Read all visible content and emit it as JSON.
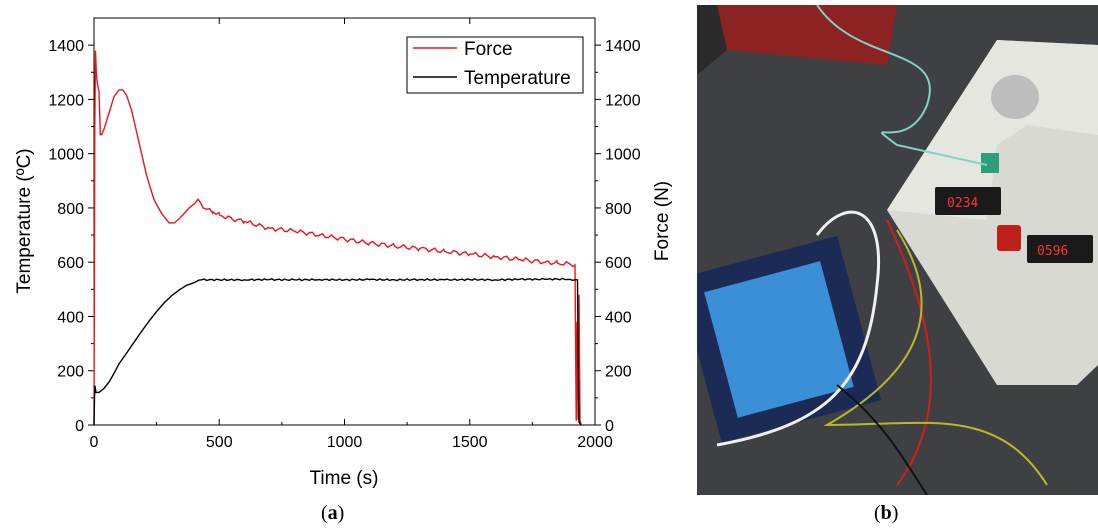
{
  "chart_data": {
    "type": "line",
    "xlabel": "Time (s)",
    "ylabel_left": "Temperature (ºC)",
    "ylabel_right": "Force (N)",
    "xlim": [
      0,
      2000
    ],
    "ylim": [
      0,
      1500
    ],
    "xticks": [
      0,
      500,
      1000,
      1500,
      2000
    ],
    "yticks": [
      0,
      200,
      400,
      600,
      800,
      1000,
      1200,
      1400
    ],
    "legend_position": "top-right",
    "series": [
      {
        "name": "Force",
        "color": "#e8171c",
        "x": [
          0,
          3,
          6,
          9,
          12,
          15,
          20,
          25,
          30,
          40,
          60,
          80,
          100,
          115,
          130,
          150,
          180,
          210,
          240,
          270,
          300,
          320,
          340,
          360,
          380,
          400,
          415,
          425,
          435,
          450,
          475,
          500,
          550,
          600,
          700,
          800,
          900,
          1000,
          1100,
          1200,
          1300,
          1400,
          1500,
          1600,
          1700,
          1800,
          1850,
          1900,
          1920,
          1925,
          1928,
          1932,
          1936,
          1940,
          1945
        ],
        "y": [
          0,
          1100,
          1380,
          1300,
          1270,
          1250,
          1230,
          1070,
          1070,
          1090,
          1150,
          1210,
          1235,
          1235,
          1215,
          1160,
          1040,
          920,
          830,
          780,
          745,
          745,
          760,
          780,
          800,
          815,
          832,
          820,
          800,
          795,
          785,
          775,
          760,
          750,
          725,
          715,
          700,
          685,
          670,
          660,
          650,
          640,
          630,
          620,
          610,
          600,
          597,
          593,
          590,
          15,
          380,
          20,
          480,
          15,
          5
        ]
      },
      {
        "name": "Temperature",
        "color": "#000000",
        "x": [
          0,
          2,
          4,
          6,
          8,
          10,
          20,
          40,
          60,
          80,
          100,
          130,
          160,
          190,
          220,
          250,
          280,
          310,
          340,
          370,
          400,
          420,
          430,
          500,
          600,
          700,
          800,
          900,
          1000,
          1100,
          1200,
          1300,
          1400,
          1500,
          1600,
          1700,
          1800,
          1850,
          1900,
          1920,
          1930,
          1933,
          1936,
          1940,
          1945
        ],
        "y": [
          0,
          100,
          145,
          130,
          120,
          120,
          120,
          135,
          158,
          190,
          225,
          265,
          305,
          345,
          383,
          418,
          450,
          477,
          498,
          515,
          525,
          534,
          535,
          535,
          535,
          536,
          535,
          536,
          535,
          536,
          535,
          536,
          535,
          536,
          535,
          537,
          537,
          538,
          537,
          535,
          535,
          250,
          10,
          5,
          0
        ]
      }
    ]
  },
  "captions": {
    "left": "a",
    "right": "b"
  },
  "photo": {
    "description_icon": "photo-icon"
  }
}
